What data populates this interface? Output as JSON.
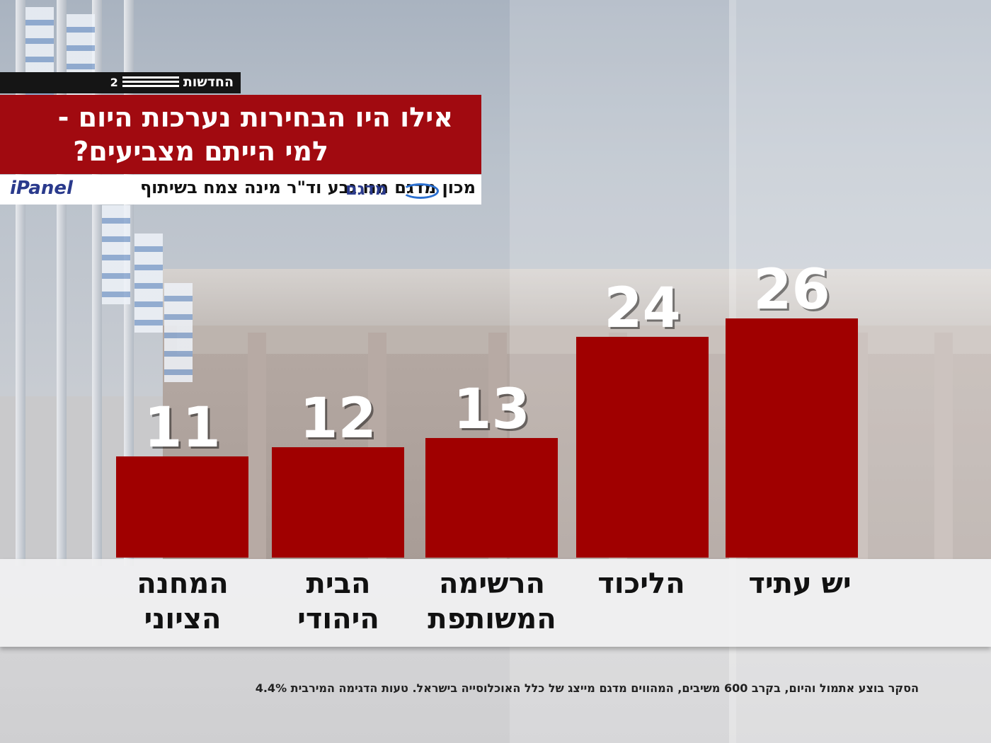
{
  "header": {
    "channel_name": "החדשות",
    "channel_number": "2",
    "title_line1": "אילו היו הבחירות נערכות היום -",
    "title_line2": "למי הייתם מצביעים?",
    "credit_text": "מכון מדגם מנו גבע וד\"ר מינה צמח בשיתוף",
    "credit_logo": "מדגם",
    "credit_partner": "iPanel"
  },
  "chart_data": {
    "type": "bar",
    "categories": [
      "המחנה הציוני",
      "הבית היהודי",
      "הרשימה המשותפת",
      "הליכוד",
      "יש עתיד"
    ],
    "values": [
      11,
      12,
      13,
      24,
      26
    ],
    "title": "אילו היו הבחירות נערכות היום - למי הייתם מצביעים?",
    "xlabel": "",
    "ylabel": "",
    "ylim": [
      0,
      30
    ],
    "grid": false,
    "bar_color": "#a00000",
    "value_label_color": "#ffffff"
  },
  "categories_display": [
    {
      "line1": "המחנה",
      "line2": "הציוני"
    },
    {
      "line1": "הבית",
      "line2": "היהודי"
    },
    {
      "line1": "הרשימה",
      "line2": "המשותפת"
    },
    {
      "line1": "הליכוד",
      "line2": ""
    },
    {
      "line1": "יש עתיד",
      "line2": ""
    }
  ],
  "footnote": "הסקר בוצע אתמול והיום, בקרב 600 משיבים, המהווים מדגם מייצג של כלל האוכלוסייה בישראל. טעות הדגימה המירבית 4.4%",
  "colors": {
    "title_background": "#a10a10",
    "bar": "#a00000"
  }
}
